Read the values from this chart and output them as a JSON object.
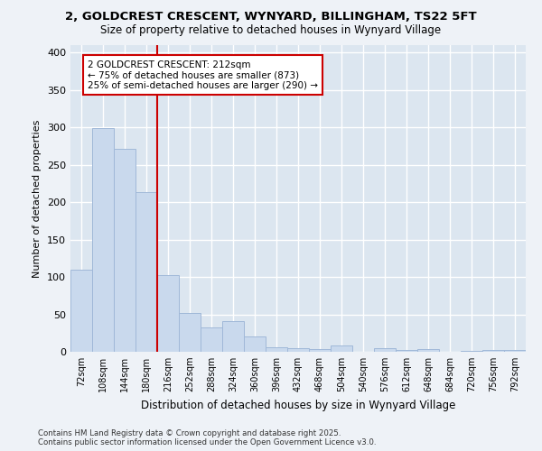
{
  "title_line1": "2, GOLDCREST CRESCENT, WYNYARD, BILLINGHAM, TS22 5FT",
  "title_line2": "Size of property relative to detached houses in Wynyard Village",
  "xlabel": "Distribution of detached houses by size in Wynyard Village",
  "ylabel": "Number of detached properties",
  "bar_color": "#c9d9ed",
  "bar_edge_color": "#a0b8d8",
  "categories": [
    "72sqm",
    "108sqm",
    "144sqm",
    "180sqm",
    "216sqm",
    "252sqm",
    "288sqm",
    "324sqm",
    "360sqm",
    "396sqm",
    "432sqm",
    "468sqm",
    "504sqm",
    "540sqm",
    "576sqm",
    "612sqm",
    "648sqm",
    "684sqm",
    "720sqm",
    "756sqm",
    "792sqm"
  ],
  "values": [
    110,
    299,
    271,
    214,
    103,
    52,
    32,
    41,
    20,
    6,
    5,
    4,
    8,
    0,
    5,
    3,
    4,
    0,
    1,
    3,
    3
  ],
  "vline_color": "#cc0000",
  "annotation_text": "2 GOLDCREST CRESCENT: 212sqm\n← 75% of detached houses are smaller (873)\n25% of semi-detached houses are larger (290) →",
  "annotation_box_color": "#ffffff",
  "annotation_edge_color": "#cc0000",
  "ylim": [
    0,
    410
  ],
  "yticks": [
    0,
    50,
    100,
    150,
    200,
    250,
    300,
    350,
    400
  ],
  "background_color": "#dce6f0",
  "grid_color": "#ffffff",
  "fig_bg_color": "#eef2f7",
  "footer_text": "Contains HM Land Registry data © Crown copyright and database right 2025.\nContains public sector information licensed under the Open Government Licence v3.0."
}
